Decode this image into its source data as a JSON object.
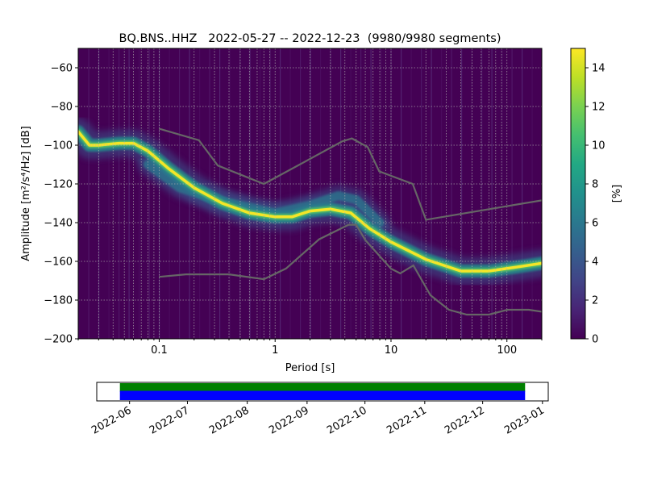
{
  "chart_data": [
    {
      "type": "heatmap",
      "title": "BQ.BNS..HHZ   2022-05-27 -- 2022-12-23  (9980/9980 segments)",
      "xlabel": "Period [s]",
      "ylabel": "Amplitude [m²/s⁴/Hz] [dB]",
      "xscale": "log",
      "xlim": [
        0.02,
        200
      ],
      "ylim": [
        -200,
        -50
      ],
      "xticks": [
        {
          "value": 0.1,
          "label": "0.1"
        },
        {
          "value": 1,
          "label": "1"
        },
        {
          "value": 10,
          "label": "10"
        },
        {
          "value": 100,
          "label": "100"
        }
      ],
      "yticks": [
        -60,
        -80,
        -100,
        -120,
        -140,
        -160,
        -180,
        -200
      ],
      "grid": true,
      "colorbar": {
        "label": "[%]",
        "range": [
          0,
          15
        ],
        "ticks": [
          0,
          2,
          4,
          6,
          8,
          10,
          12,
          14
        ],
        "colormap": "viridis"
      },
      "psd_mode_curve": [
        {
          "period": 0.02,
          "db": -93
        },
        {
          "period": 0.025,
          "db": -100
        },
        {
          "period": 0.03,
          "db": -100
        },
        {
          "period": 0.045,
          "db": -99
        },
        {
          "period": 0.06,
          "db": -99
        },
        {
          "period": 0.08,
          "db": -103
        },
        {
          "period": 0.12,
          "db": -112
        },
        {
          "period": 0.2,
          "db": -122
        },
        {
          "period": 0.35,
          "db": -130
        },
        {
          "period": 0.6,
          "db": -135
        },
        {
          "period": 1.0,
          "db": -137
        },
        {
          "period": 1.4,
          "db": -137
        },
        {
          "period": 2.0,
          "db": -134
        },
        {
          "period": 3.0,
          "db": -133
        },
        {
          "period": 4.5,
          "db": -135
        },
        {
          "period": 6.5,
          "db": -143
        },
        {
          "period": 10,
          "db": -150
        },
        {
          "period": 20,
          "db": -159
        },
        {
          "period": 40,
          "db": -165
        },
        {
          "period": 70,
          "db": -165
        },
        {
          "period": 120,
          "db": -163
        },
        {
          "period": 200,
          "db": -161
        }
      ],
      "psd_secondary_branch": [
        {
          "period": 0.08,
          "db": -110
        },
        {
          "period": 0.15,
          "db": -122
        },
        {
          "period": 0.3,
          "db": -128
        },
        {
          "period": 0.6,
          "db": -132
        },
        {
          "period": 1.0,
          "db": -135
        },
        {
          "period": 2.0,
          "db": -131
        },
        {
          "period": 3.5,
          "db": -126
        },
        {
          "period": 5.0,
          "db": -128
        },
        {
          "period": 8.0,
          "db": -140
        }
      ],
      "noise_models": [
        {
          "name": "high",
          "color": "#666666",
          "points": [
            {
              "period": 0.1,
              "db": -91.5
            },
            {
              "period": 0.22,
              "db": -97.4
            },
            {
              "period": 0.32,
              "db": -110.5
            },
            {
              "period": 0.8,
              "db": -120
            },
            {
              "period": 3.8,
              "db": -98
            },
            {
              "period": 4.6,
              "db": -96.5
            },
            {
              "period": 6.3,
              "db": -101
            },
            {
              "period": 7.9,
              "db": -113.5
            },
            {
              "period": 15.4,
              "db": -120
            },
            {
              "period": 20,
              "db": -138.5
            },
            {
              "period": 354,
              "db": -126
            }
          ]
        },
        {
          "name": "low",
          "color": "#666666",
          "points": [
            {
              "period": 0.1,
              "db": -168
            },
            {
              "period": 0.17,
              "db": -166.7
            },
            {
              "period": 0.4,
              "db": -166.7
            },
            {
              "period": 0.8,
              "db": -169.2
            },
            {
              "period": 1.24,
              "db": -163.7
            },
            {
              "period": 2.4,
              "db": -148.6
            },
            {
              "period": 4.3,
              "db": -141.1
            },
            {
              "period": 5.0,
              "db": -141.1
            },
            {
              "period": 6.0,
              "db": -149
            },
            {
              "period": 10,
              "db": -163.8
            },
            {
              "period": 12,
              "db": -166.2
            },
            {
              "period": 15.6,
              "db": -162.1
            },
            {
              "period": 21.9,
              "db": -177.5
            },
            {
              "period": 31.6,
              "db": -185
            },
            {
              "period": 45,
              "db": -187.5
            },
            {
              "period": 70,
              "db": -187.5
            },
            {
              "period": 101,
              "db": -185
            },
            {
              "period": 154,
              "db": -185
            },
            {
              "period": 200,
              "db": -186
            }
          ]
        }
      ]
    },
    {
      "type": "bar",
      "xlim": [
        "2022-05-15",
        "2023-01-04"
      ],
      "xticks": [
        "2022-06",
        "2022-07",
        "2022-08",
        "2022-09",
        "2022-10",
        "2022-11",
        "2022-12",
        "2023-01"
      ],
      "coverage_bars": [
        {
          "start": "2022-05-27",
          "end": "2022-12-23",
          "color": "#008000",
          "row": "top"
        },
        {
          "start": "2022-05-27",
          "end": "2022-12-23",
          "color": "#0000ff",
          "row": "bottom"
        }
      ]
    }
  ]
}
